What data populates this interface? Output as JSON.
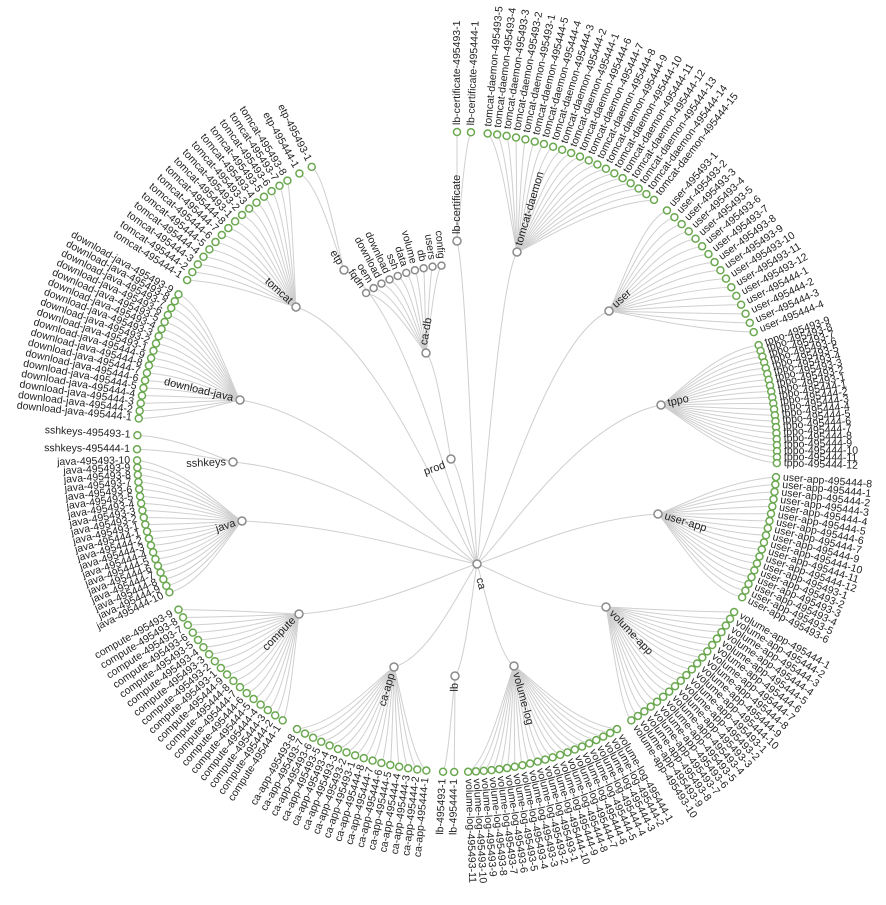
{
  "root": {
    "name": "ca"
  },
  "groups": [
    {
      "name": "prod",
      "parent": "ca",
      "leaves": []
    },
    {
      "name": "ca-db",
      "parent": "prod",
      "leaf_style": "grey",
      "leaves": [
        "fqdn",
        "oem",
        "download",
        "download",
        "ssh",
        "data",
        "volume",
        "db",
        "users",
        "config"
      ]
    },
    {
      "name": "lb-certificate",
      "parent": "ca",
      "leaves": [
        "lb-certificate-495493-1",
        "lb-certificate-495444-1"
      ]
    },
    {
      "name": "tomcat-daemon",
      "parent": "ca",
      "leaves": [
        "tomcat-daemon-495493-5",
        "tomcat-daemon-495493-4",
        "tomcat-daemon-495493-3",
        "tomcat-daemon-495493-2",
        "tomcat-daemon-495493-1",
        "tomcat-daemon-495444-5",
        "tomcat-daemon-495444-4",
        "tomcat-daemon-495444-3",
        "tomcat-daemon-495444-2",
        "tomcat-daemon-495444-1",
        "tomcat-daemon-495444-6",
        "tomcat-daemon-495444-7",
        "tomcat-daemon-495444-8",
        "tomcat-daemon-495444-9",
        "tomcat-daemon-495444-10",
        "tomcat-daemon-495444-11",
        "tomcat-daemon-495444-12",
        "tomcat-daemon-495444-13",
        "tomcat-daemon-495444-14",
        "tomcat-daemon-495444-15"
      ]
    },
    {
      "name": "user",
      "parent": "ca",
      "leaves": [
        "user-495493-1",
        "user-495493-2",
        "user-495493-3",
        "user-495493-4",
        "user-495493-5",
        "user-495493-6",
        "user-495493-7",
        "user-495493-8",
        "user-495493-9",
        "user-495493-10",
        "user-495493-11",
        "user-495493-12",
        "user-495444-1",
        "user-495444-2",
        "user-495444-3",
        "user-495444-4"
      ]
    },
    {
      "name": "tppo",
      "parent": "ca",
      "leaves": [
        "tppo-495493-9",
        "tppo-495493-8",
        "tppo-495493-7",
        "tppo-495493-6",
        "tppo-495493-5",
        "tppo-495493-4",
        "tppo-495493-3",
        "tppo-495493-2",
        "tppo-495493-1",
        "tppo-495444-1",
        "tppo-495444-2",
        "tppo-495444-3",
        "tppo-495444-4",
        "tppo-495444-5",
        "tppo-495444-6",
        "tppo-495444-7",
        "tppo-495444-8",
        "tppo-495444-9",
        "tppo-495444-10",
        "tppo-495444-11",
        "tppo-495444-12"
      ]
    },
    {
      "name": "user-app",
      "parent": "ca",
      "leaves": [
        "user-app-495444-8",
        "user-app-495444-1",
        "user-app-495444-2",
        "user-app-495444-3",
        "user-app-495444-4",
        "user-app-495444-5",
        "user-app-495444-6",
        "user-app-495444-7",
        "user-app-495444-9",
        "user-app-495444-10",
        "user-app-495444-11",
        "user-app-495444-12",
        "user-app-495493-1",
        "user-app-495493-2",
        "user-app-495493-3",
        "user-app-495493-4",
        "user-app-495493-5",
        "user-app-495493-6"
      ]
    },
    {
      "name": "volume-app",
      "parent": "ca",
      "leaves": [
        "volume-app-495444-1",
        "volume-app-495444-2",
        "volume-app-495444-3",
        "volume-app-495444-4",
        "volume-app-495444-5",
        "volume-app-495444-6",
        "volume-app-495444-7",
        "volume-app-495444-8",
        "volume-app-495444-9",
        "volume-app-495444-10",
        "volume-app-495493-1",
        "volume-app-495493-2",
        "volume-app-495493-3",
        "volume-app-495493-4",
        "volume-app-495493-5",
        "volume-app-495493-6",
        "volume-app-495493-7",
        "volume-app-495493-8",
        "volume-app-495493-9",
        "volume-app-495493-10"
      ]
    },
    {
      "name": "volume-log",
      "parent": "ca",
      "leaves": [
        "volume-log-495444-1",
        "volume-log-495444-2",
        "volume-log-495444-3",
        "volume-log-495444-4",
        "volume-log-495444-5",
        "volume-log-495444-6",
        "volume-log-495444-7",
        "volume-log-495444-8",
        "volume-log-495444-9",
        "volume-log-495444-10",
        "volume-log-495493-1",
        "volume-log-495493-2",
        "volume-log-495493-3",
        "volume-log-495493-4",
        "volume-log-495493-5",
        "volume-log-495493-6",
        "volume-log-495493-7",
        "volume-log-495493-8",
        "volume-log-495493-9",
        "volume-log-495493-10",
        "volume-log-495493-11"
      ]
    },
    {
      "name": "lb",
      "parent": "ca",
      "leaves": [
        "lb-495444-1",
        "lb-495493-1"
      ]
    },
    {
      "name": "ca-app",
      "parent": "ca",
      "leaves": [
        "ca-app-495444-1",
        "ca-app-495444-2",
        "ca-app-495444-3",
        "ca-app-495444-4",
        "ca-app-495444-5",
        "ca-app-495444-6",
        "ca-app-495444-7",
        "ca-app-495444-8",
        "ca-app-495493-1",
        "ca-app-495493-2",
        "ca-app-495493-3",
        "ca-app-495493-4",
        "ca-app-495493-5",
        "ca-app-495493-6",
        "ca-app-495493-7",
        "ca-app-495493-8"
      ]
    },
    {
      "name": "compute",
      "parent": "ca",
      "leaves": [
        "compute-495444-1",
        "compute-495444-2",
        "compute-495444-3",
        "compute-495444-4",
        "compute-495444-5",
        "compute-495444-6",
        "compute-495444-7",
        "compute-495444-8",
        "compute-495444-9",
        "compute-495493-1",
        "compute-495493-2",
        "compute-495493-3",
        "compute-495493-4",
        "compute-495493-5",
        "compute-495493-6",
        "compute-495493-7",
        "compute-495493-8",
        "compute-495493-9"
      ]
    },
    {
      "name": "java",
      "parent": "ca",
      "leaves": [
        "java-495444-10",
        "java-495444-9",
        "java-495444-8",
        "java-495444-7",
        "java-495444-6",
        "java-495444-5",
        "java-495444-4",
        "java-495444-3",
        "java-495444-2",
        "java-495444-1",
        "java-495493-1",
        "java-495493-2",
        "java-495493-3",
        "java-495493-4",
        "java-495493-5",
        "java-495493-6",
        "java-495493-7",
        "java-495493-8",
        "java-495493-9",
        "java-495493-10"
      ]
    },
    {
      "name": "sshkeys",
      "parent": "ca",
      "leaves": [
        "sshkeys-495444-1",
        "sshkeys-495493-1"
      ]
    },
    {
      "name": "download-java",
      "parent": "ca",
      "leaves": [
        "download-java-495444-1",
        "download-java-495444-2",
        "download-java-495444-3",
        "download-java-495444-4",
        "download-java-495444-5",
        "download-java-495444-6",
        "download-java-495444-7",
        "download-java-495444-8",
        "download-java-495444-9",
        "download-java-495493-1",
        "download-java-495493-2",
        "download-java-495493-3",
        "download-java-495493-4",
        "download-java-495493-5",
        "download-java-495493-6",
        "download-java-495493-7",
        "download-java-495493-8",
        "download-java-495493-9"
      ]
    },
    {
      "name": "tomcat",
      "parent": "ca",
      "leaves": [
        "tomcat-495444-1",
        "tomcat-495444-2",
        "tomcat-495444-3",
        "tomcat-495444-4",
        "tomcat-495444-5",
        "tomcat-495444-6",
        "tomcat-495444-7",
        "tomcat-495444-8",
        "tomcat-495493-1",
        "tomcat-495493-2",
        "tomcat-495493-3",
        "tomcat-495493-4",
        "tomcat-495493-5",
        "tomcat-495493-6",
        "tomcat-495493-7",
        "tomcat-495493-8"
      ]
    },
    {
      "name": "etp",
      "parent": "ca",
      "leaves": [
        "etp-495444-1",
        "etp-495493-1"
      ]
    }
  ],
  "colors": {
    "leaf_stroke": "#6aa84f",
    "inner_stroke": "#8a8a8a",
    "link": "#cfcfcf",
    "text": "#222222"
  }
}
